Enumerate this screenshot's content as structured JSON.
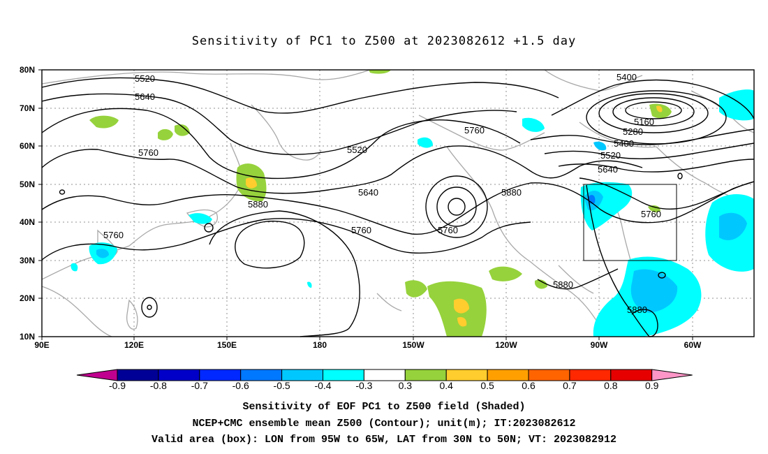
{
  "title": "Sensitivity of PC1 to Z500 at 2023082612 +1.5 day",
  "map": {
    "lon_labels": [
      "90E",
      "120E",
      "150E",
      "180",
      "150W",
      "120W",
      "90W",
      "60W"
    ],
    "lat_labels": [
      "80N",
      "70N",
      "60N",
      "50N",
      "40N",
      "30N",
      "20N",
      "10N"
    ],
    "contour_labels": [
      "5520",
      "5640",
      "5760",
      "5520",
      "5760",
      "5640",
      "5880",
      "5760",
      "5760",
      "5880",
      "5400",
      "5160",
      "5280",
      "5400",
      "5520",
      "5640",
      "5760",
      "5760",
      "5880",
      "5880"
    ],
    "valid_box": {
      "lon_range": [
        "95W",
        "65W"
      ],
      "lat_range": [
        "30N",
        "50N"
      ]
    }
  },
  "colorbar": {
    "labels": [
      "-0.9",
      "-0.8",
      "-0.7",
      "-0.6",
      "-0.5",
      "-0.4",
      "-0.3",
      "0.3",
      "0.4",
      "0.5",
      "0.6",
      "0.7",
      "0.8",
      "0.9"
    ],
    "colors": [
      "#c0008f",
      "#000096",
      "#0000c8",
      "#0028ff",
      "#0078ff",
      "#00c8ff",
      "#00ffff",
      "#ffffff",
      "#96d23c",
      "#ffcd2d",
      "#ffa000",
      "#ff6400",
      "#ff2800",
      "#e60000",
      "#ff96c8"
    ]
  },
  "captions": [
    "Sensitivity of EOF PC1 to Z500 field (Shaded)",
    "NCEP+CMC ensemble mean Z500 (Contour); unit(m); IT:2023082612",
    "Valid area (box): LON from 95W to 65W, LAT from 30N to 50N; VT: 2023082912"
  ]
}
